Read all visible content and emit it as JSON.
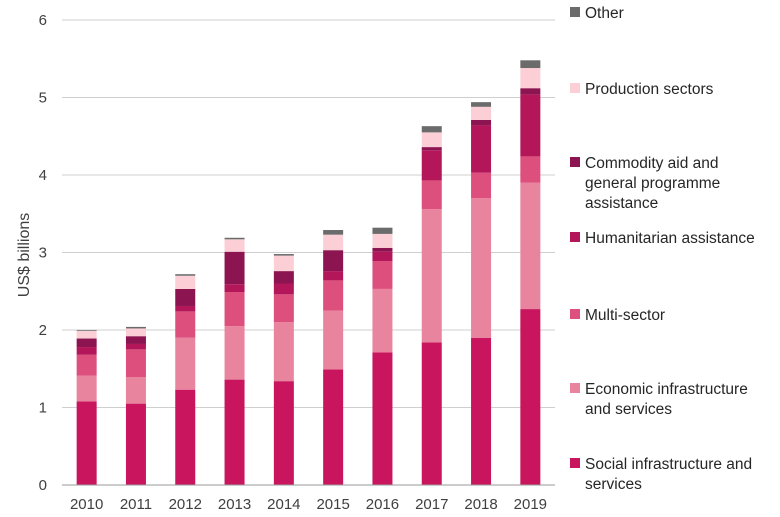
{
  "chart_data": {
    "type": "bar",
    "stacked": true,
    "title": "",
    "xlabel": "",
    "ylabel": "US$ billions",
    "ylim": [
      0,
      6
    ],
    "yticks": [
      0,
      1,
      2,
      3,
      4,
      5,
      6
    ],
    "grid": true,
    "legend_position": "right",
    "categories": [
      "2010",
      "2011",
      "2012",
      "2013",
      "2014",
      "2015",
      "2016",
      "2017",
      "2018",
      "2019"
    ],
    "series": [
      {
        "name": "Social infrastructure and services",
        "legend_lines": [
          "Social infrastructure and",
          "services"
        ],
        "color": "#c8155e",
        "values": [
          1.08,
          1.05,
          1.23,
          1.36,
          1.34,
          1.49,
          1.71,
          1.84,
          1.9,
          2.27
        ]
      },
      {
        "name": "Economic infrastructure and services",
        "legend_lines": [
          "Economic infrastructure",
          "and services"
        ],
        "color": "#e9849e",
        "values": [
          0.33,
          0.34,
          0.67,
          0.69,
          0.76,
          0.76,
          0.82,
          1.72,
          1.8,
          1.63
        ]
      },
      {
        "name": "Multi-sector",
        "legend_lines": [
          "Multi-sector"
        ],
        "color": "#dd4f7d",
        "values": [
          0.27,
          0.36,
          0.34,
          0.44,
          0.36,
          0.39,
          0.36,
          0.37,
          0.33,
          0.34
        ]
      },
      {
        "name": "Humanitarian assistance",
        "legend_lines": [
          "Humanitarian assistance"
        ],
        "color": "#b3175a",
        "values": [
          0.1,
          0.07,
          0.07,
          0.1,
          0.14,
          0.12,
          0.12,
          0.39,
          0.61,
          0.8
        ]
      },
      {
        "name": "Commodity aid and general programme assistance",
        "legend_lines": [
          "Commodity aid and",
          "general programme",
          "assistance"
        ],
        "color": "#8c1450",
        "values": [
          0.11,
          0.1,
          0.22,
          0.42,
          0.16,
          0.27,
          0.05,
          0.04,
          0.07,
          0.08
        ]
      },
      {
        "name": "Production sectors",
        "legend_lines": [
          "Production sectors"
        ],
        "color": "#fbcfd5",
        "values": [
          0.1,
          0.1,
          0.17,
          0.16,
          0.2,
          0.2,
          0.18,
          0.19,
          0.17,
          0.26
        ]
      },
      {
        "name": "Other",
        "legend_lines": [
          "Other"
        ],
        "color": "#6b6b6b",
        "values": [
          0.01,
          0.02,
          0.02,
          0.02,
          0.02,
          0.06,
          0.08,
          0.08,
          0.06,
          0.1
        ]
      }
    ]
  }
}
